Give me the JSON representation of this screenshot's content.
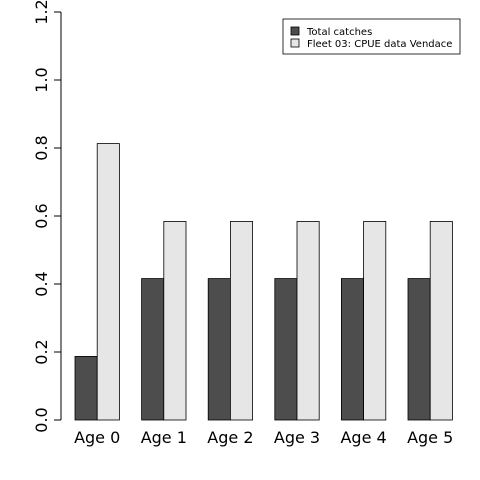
{
  "chart_data": {
    "type": "bar",
    "categories": [
      "Age 0",
      "Age 1",
      "Age 2",
      "Age 3",
      "Age 4",
      "Age 5"
    ],
    "series": [
      {
        "name": "Total catches",
        "values": [
          0.187,
          0.416,
          0.416,
          0.416,
          0.416,
          0.416
        ],
        "color": "#4d4d4d"
      },
      {
        "name": "Fleet 03:  CPUE data Vendace",
        "values": [
          0.813,
          0.584,
          0.584,
          0.584,
          0.584,
          0.584
        ],
        "color": "#e6e6e6"
      }
    ],
    "ylim": [
      0,
      1.2
    ],
    "yticks": [
      "0.0",
      "0.2",
      "0.4",
      "0.6",
      "0.8",
      "1.0",
      "1.2"
    ],
    "legend": "top-right",
    "grid": false
  }
}
